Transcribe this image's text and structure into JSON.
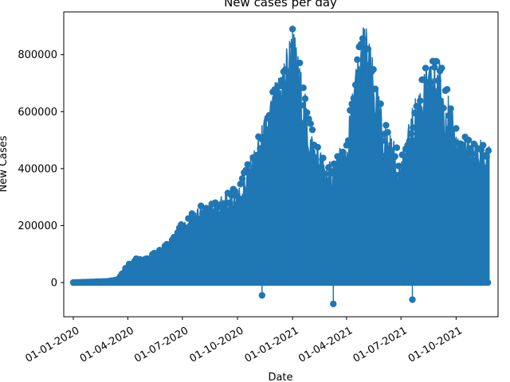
{
  "chart_data": {
    "type": "line",
    "title": "New cases per day",
    "xlabel": "Date",
    "ylabel": "New Cases",
    "x_axis": "date",
    "xlim": [
      "2019-12-16",
      "2021-12-10"
    ],
    "ylim": [
      -120000,
      950000
    ],
    "x_ticks": [
      {
        "date": "2020-01-01",
        "label": "01-01-2020"
      },
      {
        "date": "2020-04-01",
        "label": "01-04-2020"
      },
      {
        "date": "2020-07-01",
        "label": "01-07-2020"
      },
      {
        "date": "2020-10-01",
        "label": "01-10-2020"
      },
      {
        "date": "2021-01-01",
        "label": "01-01-2021"
      },
      {
        "date": "2021-04-01",
        "label": "01-04-2021"
      },
      {
        "date": "2021-07-01",
        "label": "01-07-2021"
      },
      {
        "date": "2021-10-01",
        "label": "01-10-2021"
      }
    ],
    "y_ticks": [
      0,
      200000,
      400000,
      600000,
      800000
    ],
    "grid": false,
    "legend": "none",
    "color": "#1f77b4",
    "marker": "circle",
    "series": [
      {
        "x": [
          "2020-01-01",
          "2020-02-01",
          "2020-03-01",
          "2020-03-15",
          "2020-04-01",
          "2020-04-15",
          "2020-05-01",
          "2020-06-01",
          "2020-07-01",
          "2020-08-01",
          "2020-09-01",
          "2020-10-01",
          "2020-11-01",
          "2020-12-01",
          "2021-01-01",
          "2021-02-01",
          "2021-03-01",
          "2021-04-01",
          "2021-04-15",
          "2021-05-01",
          "2021-06-01",
          "2021-07-01",
          "2021-08-01",
          "2021-09-01",
          "2021-10-01",
          "2021-11-01"
        ],
        "y": [
          0,
          2000,
          5000,
          10000,
          60000,
          80000,
          90000,
          120000,
          200000,
          260000,
          290000,
          320000,
          470000,
          660000,
          880000,
          520000,
          400000,
          480000,
          720000,
          900000,
          560000,
          420000,
          690000,
          780000,
          520000,
          480000
        ]
      }
    ],
    "outliers": [
      {
        "x": "2021-01-01",
        "y": 890000
      },
      {
        "x": "2020-11-11",
        "y": -45000
      },
      {
        "x": "2021-03-10",
        "y": -75000
      },
      {
        "x": "2021-07-20",
        "y": -60000
      }
    ]
  }
}
